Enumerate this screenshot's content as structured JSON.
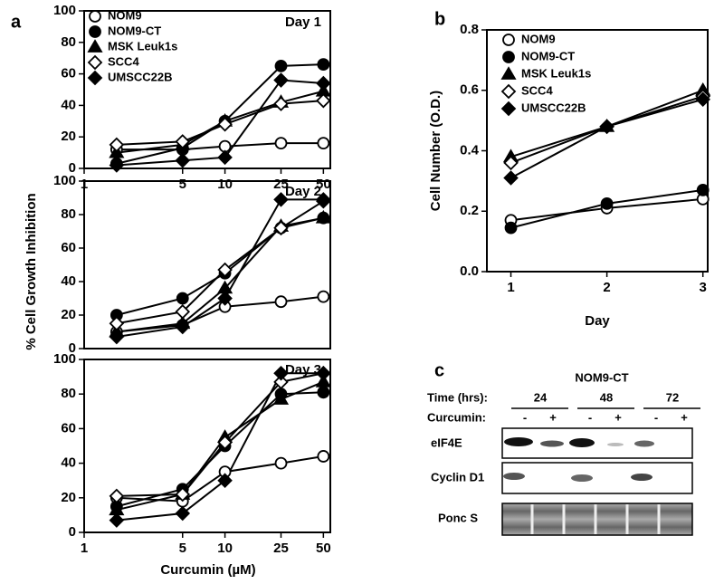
{
  "chart_data": [
    {
      "type": "line",
      "panel_label": "a",
      "annotation": "Day 1",
      "xscale": "log",
      "x": [
        1.7,
        5,
        10,
        25,
        50
      ],
      "xlim": [
        1,
        56
      ],
      "xticks": [
        1,
        5,
        10,
        25,
        50
      ],
      "ylim": [
        0,
        100
      ],
      "yticks": [
        0,
        20,
        40,
        60,
        80,
        100
      ],
      "series": [
        {
          "name": "NOM9",
          "marker": "circle-open",
          "color": "#000000",
          "values": [
            12,
            12,
            14,
            16,
            16
          ]
        },
        {
          "name": "NOM9-CT",
          "marker": "circle",
          "color": "#000000",
          "values": [
            3,
            13,
            30,
            65,
            66
          ]
        },
        {
          "name": "MSK Leuk1s",
          "marker": "triangle",
          "color": "#000000",
          "values": [
            10,
            15,
            30,
            42,
            49
          ]
        },
        {
          "name": "SCC4",
          "marker": "diamond-open",
          "color": "#000000",
          "values": [
            15,
            17,
            28,
            41,
            43
          ]
        },
        {
          "name": "UMSCC22B",
          "marker": "diamond",
          "color": "#000000",
          "values": [
            2,
            5,
            7,
            56,
            54
          ]
        }
      ]
    },
    {
      "type": "line",
      "annotation": "Day 2",
      "ylabel": "% Cell Growth  Inhibition",
      "xscale": "log",
      "x": [
        1.7,
        5,
        10,
        25,
        50
      ],
      "xlim": [
        1,
        56
      ],
      "ylim": [
        0,
        100
      ],
      "yticks": [
        0,
        20,
        40,
        60,
        80,
        100
      ],
      "series": [
        {
          "marker": "circle-open",
          "color": "#000000",
          "values": [
            10,
            14,
            25,
            28,
            31
          ]
        },
        {
          "marker": "circle",
          "color": "#000000",
          "values": [
            20,
            30,
            45,
            72,
            78
          ]
        },
        {
          "marker": "triangle",
          "color": "#000000",
          "values": [
            10,
            15,
            36,
            73,
            78
          ]
        },
        {
          "marker": "diamond-open",
          "color": "#000000",
          "values": [
            15,
            22,
            47,
            72,
            88
          ]
        },
        {
          "marker": "diamond",
          "color": "#000000",
          "values": [
            7,
            13,
            30,
            89,
            89
          ]
        }
      ]
    },
    {
      "type": "line",
      "annotation": "Day 3",
      "xlabel": "Curcumin (µM)",
      "xscale": "log",
      "x": [
        1.7,
        5,
        10,
        25,
        50
      ],
      "xlim": [
        1,
        56
      ],
      "xticks": [
        1,
        5,
        10,
        25,
        50
      ],
      "ylim": [
        0,
        100
      ],
      "yticks": [
        0,
        20,
        40,
        60,
        80,
        100
      ],
      "series": [
        {
          "marker": "circle-open",
          "color": "#000000",
          "values": [
            20,
            18,
            35,
            40,
            44
          ]
        },
        {
          "marker": "circle",
          "color": "#000000",
          "values": [
            15,
            25,
            50,
            80,
            81
          ]
        },
        {
          "marker": "triangle",
          "color": "#000000",
          "values": [
            13,
            22,
            55,
            77,
            87
          ]
        },
        {
          "marker": "diamond-open",
          "color": "#000000",
          "values": [
            21,
            22,
            52,
            87,
            92
          ]
        },
        {
          "marker": "diamond",
          "color": "#000000",
          "values": [
            7,
            11,
            30,
            92,
            92
          ]
        }
      ]
    },
    {
      "type": "line",
      "panel_label": "b",
      "xlabel": "Day",
      "ylabel": "Cell Number (O.D.)",
      "x": [
        1,
        2,
        3
      ],
      "xlim": [
        0.75,
        3.05
      ],
      "xticks": [
        1,
        2,
        3
      ],
      "ylim": [
        0,
        0.8
      ],
      "yticks": [
        {
          "value": 0,
          "label": "0.0"
        },
        0.2,
        0.4,
        0.6,
        0.8
      ],
      "series": [
        {
          "name": "NOM9",
          "marker": "circle-open",
          "color": "#000000",
          "values": [
            0.17,
            0.21,
            0.24
          ]
        },
        {
          "name": "NOM9-CT",
          "marker": "circle",
          "color": "#000000",
          "values": [
            0.145,
            0.225,
            0.27
          ]
        },
        {
          "name": "MSK Leuk1s",
          "marker": "triangle",
          "color": "#000000",
          "values": [
            0.38,
            0.48,
            0.6
          ]
        },
        {
          "name": "SCC4",
          "marker": "diamond-open",
          "color": "#000000",
          "values": [
            0.36,
            0.48,
            0.58
          ]
        },
        {
          "name": "UMSCC22B",
          "marker": "diamond",
          "color": "#000000",
          "values": [
            0.31,
            0.48,
            0.57
          ]
        }
      ]
    }
  ],
  "blot": {
    "panel_label": "c",
    "title": "NOM9-CT",
    "time_label": "Time (hrs):",
    "times": [
      "24",
      "48",
      "72"
    ],
    "treatment_label": "Curcumin:",
    "treatments": [
      "-",
      "+",
      "-",
      "+",
      "-",
      "+"
    ],
    "rows": [
      "eIF4E",
      "Cyclin D1",
      "Ponc S"
    ]
  }
}
